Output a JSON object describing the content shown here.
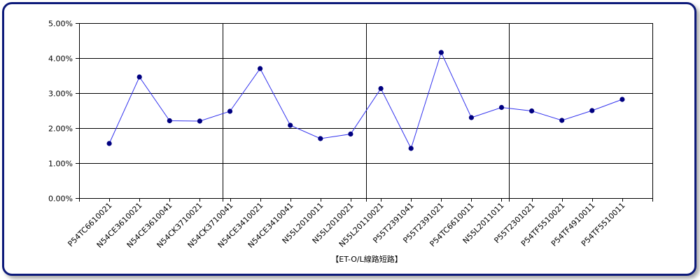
{
  "chart_data": {
    "type": "line",
    "xlabel": "【ET-O/L線路短路】",
    "ylabel": "",
    "ylim": [
      0,
      0.05
    ],
    "y_ticks": [
      "0.00%",
      "1.00%",
      "2.00%",
      "3.00%",
      "4.00%",
      "5.00%"
    ],
    "grid": true,
    "categories": [
      "P54TC6610021",
      "N54CE3610021",
      "N54CE3610041",
      "N54CK3710021",
      "N54CK3710041",
      "N54CE3410021",
      "N54CE3410041",
      "N55L2010011",
      "N55L2010021",
      "N55L20110021",
      "P55T2391041",
      "P55T2391021",
      "P54TC6610011",
      "N55L2011011",
      "P55T2301021",
      "P54TF5510021",
      "P54TF4910011",
      "P54TF5510011"
    ],
    "series": [
      {
        "values": [
          0.0156,
          0.0346,
          0.0221,
          0.022,
          0.0248,
          0.037,
          0.0208,
          0.017,
          0.0183,
          0.0313,
          0.0142,
          0.0416,
          0.023,
          0.0259,
          0.0249,
          0.0222,
          0.025,
          0.0282
        ]
      }
    ],
    "colors": {
      "line": "#3333ee",
      "marker": "#000080",
      "grid": "#000000",
      "frame": "#0d1a7a"
    }
  }
}
